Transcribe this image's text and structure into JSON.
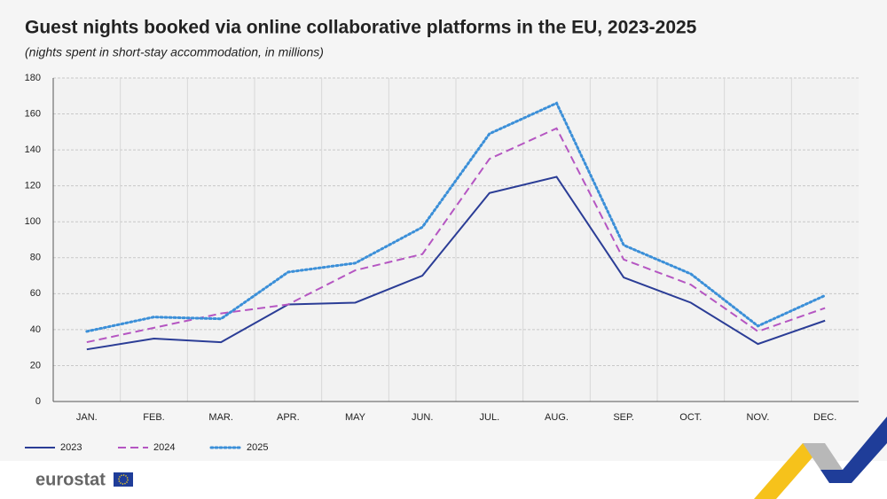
{
  "chart_data": {
    "type": "line",
    "title": "Guest nights booked via online collaborative platforms in the EU, 2023-2025",
    "subtitle": "(nights spent in short-stay accommodation, in millions)",
    "categories": [
      "JAN.",
      "FEB.",
      "MAR.",
      "APR.",
      "MAY",
      "JUN.",
      "JUL.",
      "AUG.",
      "SEP.",
      "OCT.",
      "NOV.",
      "DEC."
    ],
    "series": [
      {
        "name": "2023",
        "color": "#2b3d96",
        "dash": "solid",
        "values": [
          29,
          35,
          33,
          54,
          55,
          70,
          116,
          125,
          69,
          55,
          32,
          45
        ]
      },
      {
        "name": "2024",
        "color": "#b556c2",
        "dash": "dashed",
        "values": [
          33,
          41,
          49,
          54,
          73,
          82,
          135,
          152,
          79,
          65,
          39,
          52
        ]
      },
      {
        "name": "2025",
        "color": "#3b8fd8",
        "dash": "dotted",
        "values": [
          39,
          47,
          46,
          72,
          77,
          97,
          149,
          166,
          87,
          71,
          42,
          59
        ]
      }
    ],
    "ylim": [
      0,
      180
    ],
    "yticks": [
      0,
      20,
      40,
      60,
      80,
      100,
      120,
      140,
      160,
      180
    ],
    "grid": true,
    "legend": "bottom-left"
  },
  "branding": "eurostat"
}
